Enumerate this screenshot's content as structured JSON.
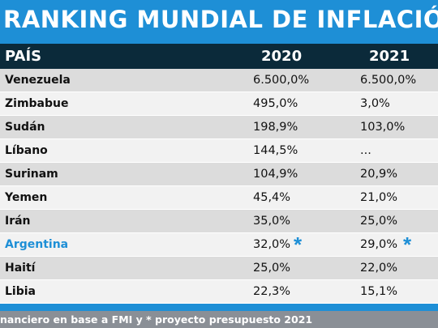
{
  "title": "RANKING MUNDIAL DE INFLACIÓN",
  "header": {
    "country": "PAÍS",
    "y2020": "2020",
    "y2021": "2021"
  },
  "rows": [
    {
      "country": "Venezuela",
      "v2020": "6.500,0%",
      "v2021": "6.500,0%"
    },
    {
      "country": "Zimbabue",
      "v2020": "495,0%",
      "v2021": "3,0%"
    },
    {
      "country": "Sudán",
      "v2020": "198,9%",
      "v2021": "103,0%"
    },
    {
      "country": "Líbano",
      "v2020": "144,5%",
      "v2021": "..."
    },
    {
      "country": "Surinam",
      "v2020": "104,9%",
      "v2021": "20,9%"
    },
    {
      "country": "Yemen",
      "v2020": "45,4%",
      "v2021": "21,0%"
    },
    {
      "country": "Irán",
      "v2020": "35,0%",
      "v2021": "25,0%"
    },
    {
      "country": "Argentina",
      "v2020": "32,0%",
      "v2021": "29,0%",
      "star2020": "*",
      "star2021": "*"
    },
    {
      "country": "Haití",
      "v2020": "25,0%",
      "v2021": "22,0%"
    },
    {
      "country": "Libia",
      "v2020": "22,3%",
      "v2021": "15,1%"
    }
  ],
  "footer": "nanciero en base a FMI y * proyecto presupuesto 2021",
  "colors": {
    "accent": "#1e8fd6",
    "header_bg": "#0b2a3a",
    "footer_bg": "#8a8f96"
  }
}
